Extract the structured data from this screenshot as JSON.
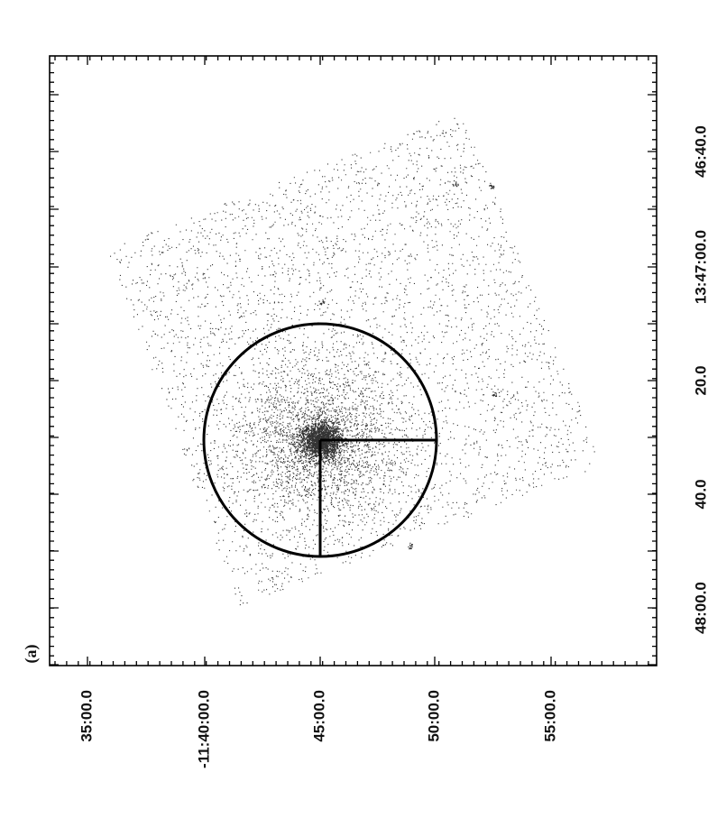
{
  "figure": {
    "panel_label": "(a)",
    "right_axis_labels": [
      "46:40.0",
      "13:47:00.0",
      "20.0",
      "40.0",
      "48:00.0"
    ],
    "bottom_axis_labels": [
      "35:00.0",
      "-11:40:00.0",
      "45:00.0",
      "50:00.0",
      "55:00.0"
    ]
  },
  "style": {
    "frame_color": "#000000",
    "region_color": "#000000",
    "photon_color": "#333333",
    "background": "#fdfdfd"
  }
}
